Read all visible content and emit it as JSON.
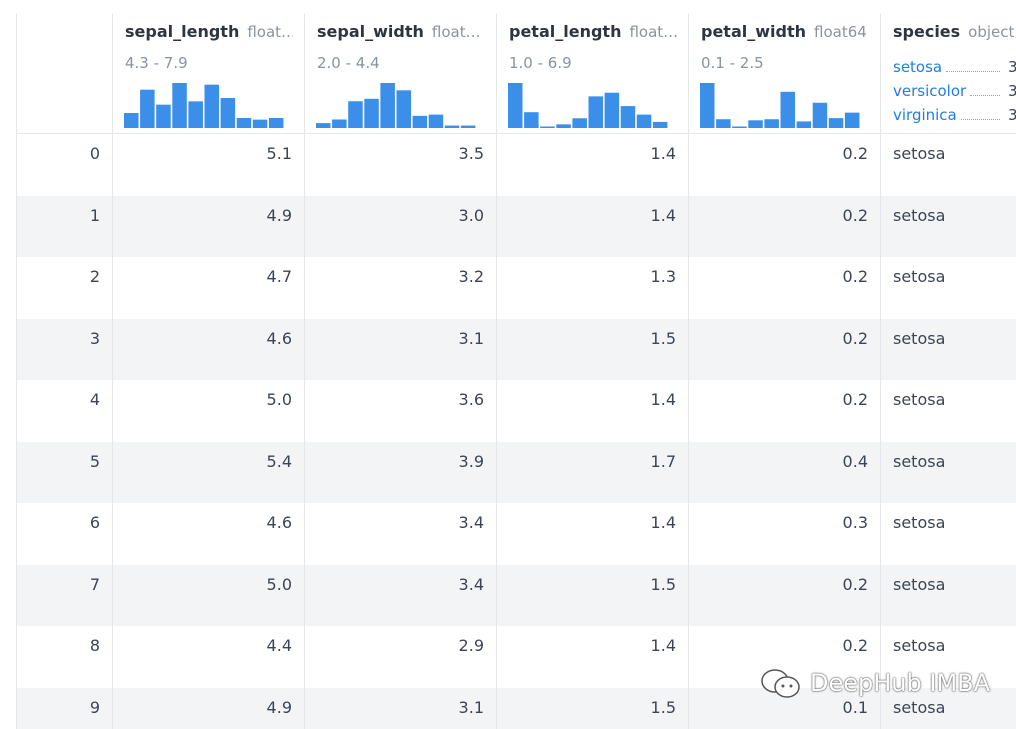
{
  "columns": [
    {
      "name": "sepal_length",
      "dtype": "float…",
      "range": "4.3 - 7.9",
      "histogram": [
        9,
        23,
        14,
        27,
        16,
        26,
        18,
        6,
        5,
        6
      ]
    },
    {
      "name": "sepal_width",
      "dtype": "float…",
      "range": "2.0 - 4.4",
      "histogram": [
        4,
        7,
        22,
        24,
        37,
        31,
        10,
        11,
        2,
        2
      ]
    },
    {
      "name": "petal_length",
      "dtype": "float…",
      "range": "1.0 - 6.9",
      "histogram": [
        37,
        13,
        0,
        3,
        8,
        26,
        29,
        18,
        11,
        5
      ]
    },
    {
      "name": "petal_width",
      "dtype": "float64",
      "range": "0.1 - 2.5",
      "histogram": [
        41,
        8,
        1,
        7,
        8,
        33,
        6,
        23,
        9,
        14
      ]
    }
  ],
  "species_column": {
    "name": "species",
    "dtype": "object",
    "categories": [
      {
        "label": "setosa",
        "count": "3"
      },
      {
        "label": "versicolor",
        "count": "3"
      },
      {
        "label": "virginica",
        "count": "3"
      }
    ]
  },
  "rows": [
    [
      "0",
      "5.1",
      "3.5",
      "1.4",
      "0.2",
      "setosa"
    ],
    [
      "1",
      "4.9",
      "3.0",
      "1.4",
      "0.2",
      "setosa"
    ],
    [
      "2",
      "4.7",
      "3.2",
      "1.3",
      "0.2",
      "setosa"
    ],
    [
      "3",
      "4.6",
      "3.1",
      "1.5",
      "0.2",
      "setosa"
    ],
    [
      "4",
      "5.0",
      "3.6",
      "1.4",
      "0.2",
      "setosa"
    ],
    [
      "5",
      "5.4",
      "3.9",
      "1.7",
      "0.4",
      "setosa"
    ],
    [
      "6",
      "4.6",
      "3.4",
      "1.4",
      "0.3",
      "setosa"
    ],
    [
      "7",
      "5.0",
      "3.4",
      "1.5",
      "0.2",
      "setosa"
    ],
    [
      "8",
      "4.4",
      "2.9",
      "1.4",
      "0.2",
      "setosa"
    ],
    [
      "9",
      "4.9",
      "3.1",
      "1.5",
      "0.1",
      "setosa"
    ]
  ],
  "watermark": "DeepHub IMBA"
}
